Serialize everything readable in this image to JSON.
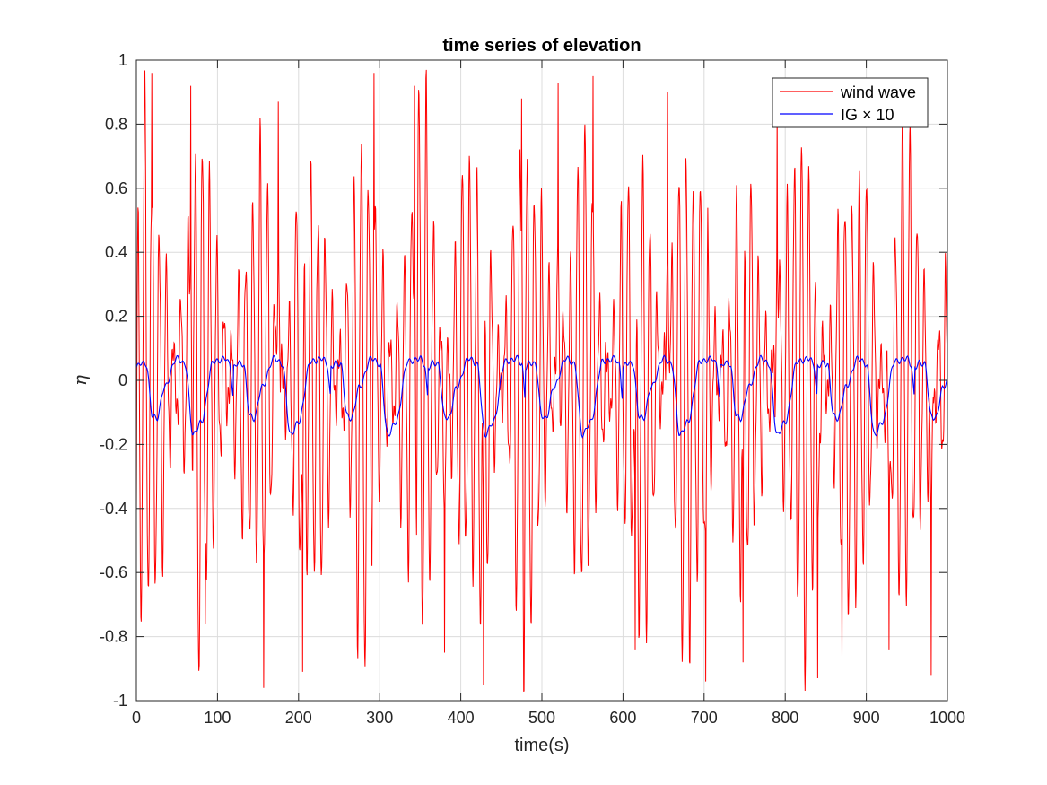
{
  "chart_data": {
    "type": "line",
    "title": "time series of elevation",
    "xlabel": "time(s)",
    "ylabel": "η",
    "xlim": [
      0,
      1000
    ],
    "ylim": [
      -1,
      1
    ],
    "xticks": [
      "0",
      "100",
      "200",
      "300",
      "400",
      "500",
      "600",
      "700",
      "800",
      "900",
      "1000"
    ],
    "yticks": [
      "-1",
      "-0.8",
      "-0.6",
      "-0.4",
      "-0.2",
      "0",
      "0.2",
      "0.4",
      "0.6",
      "0.8",
      "1"
    ],
    "grid": true,
    "box": true,
    "legend_position": "top-right",
    "legend": [
      {
        "name": "wind wave",
        "color": "#ff0000"
      },
      {
        "name": "IG × 10",
        "color": "#0000ff"
      }
    ],
    "series": [
      {
        "name": "wind wave",
        "color": "#ff0000",
        "description": "short-period wind waves (~8.9 s) modulated in groups (~67 s) with amplitude up to about ±0.96",
        "x": [
          0,
          19,
          67,
          85,
          157,
          175,
          205,
          293,
          343,
          380,
          428,
          475,
          520,
          563,
          615,
          655,
          702,
          748,
          790,
          840,
          870,
          928,
          980,
          1000
        ],
        "values": [
          -0.42,
          0.96,
          0.92,
          -0.76,
          -0.96,
          0.87,
          -0.91,
          0.96,
          0.92,
          -0.85,
          -0.95,
          0.88,
          0.93,
          0.95,
          -0.84,
          0.9,
          -0.94,
          -0.88,
          0.87,
          -0.93,
          -0.86,
          -0.84,
          -0.92,
          0.18
        ]
      },
      {
        "name": "IG × 10",
        "color": "#0000ff",
        "description": "infragravity signal scaled by 10, period about 67 s",
        "x": [
          0,
          5,
          12,
          20,
          25,
          35,
          50,
          60,
          70,
          80,
          95,
          100,
          110,
          115,
          120
        ],
        "values": [
          0.04,
          0.055,
          0.05,
          -0.11,
          -0.12,
          -0.02,
          0.07,
          0.05,
          -0.17,
          -0.13,
          0.06,
          0.06,
          0.07,
          0.05,
          -0.06
        ]
      }
    ]
  }
}
